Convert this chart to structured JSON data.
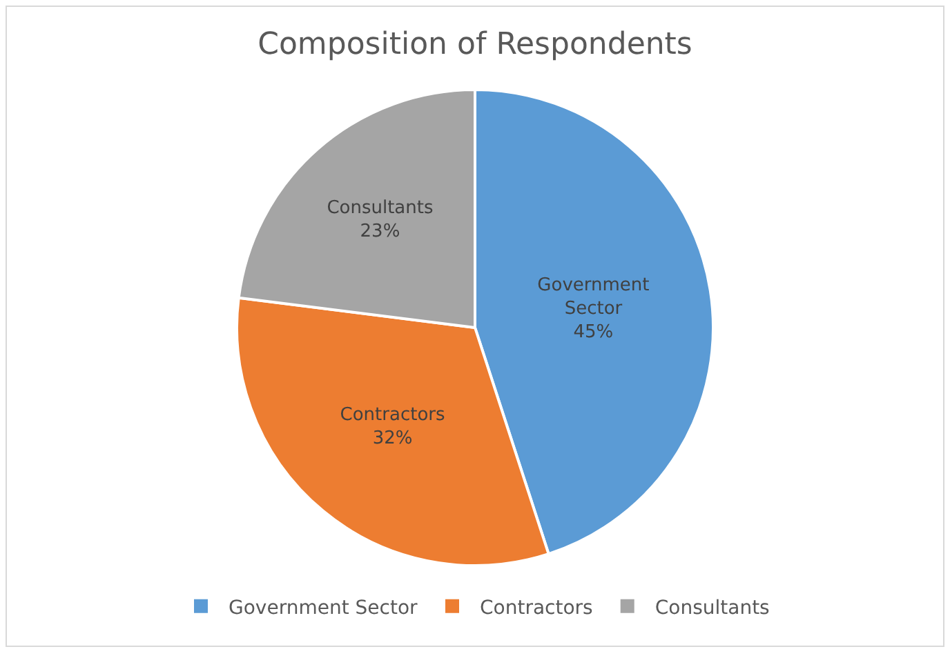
{
  "chart_data": {
    "type": "pie",
    "title": "Composition of Respondents",
    "categories": [
      "Government Sector",
      "Contractors",
      "Consultants"
    ],
    "values": [
      45,
      32,
      23
    ],
    "colors": [
      "#5b9bd5",
      "#ed7d31",
      "#a5a5a5"
    ],
    "value_labels": [
      "45%",
      "32%",
      "23%"
    ],
    "legend": "bottom"
  }
}
